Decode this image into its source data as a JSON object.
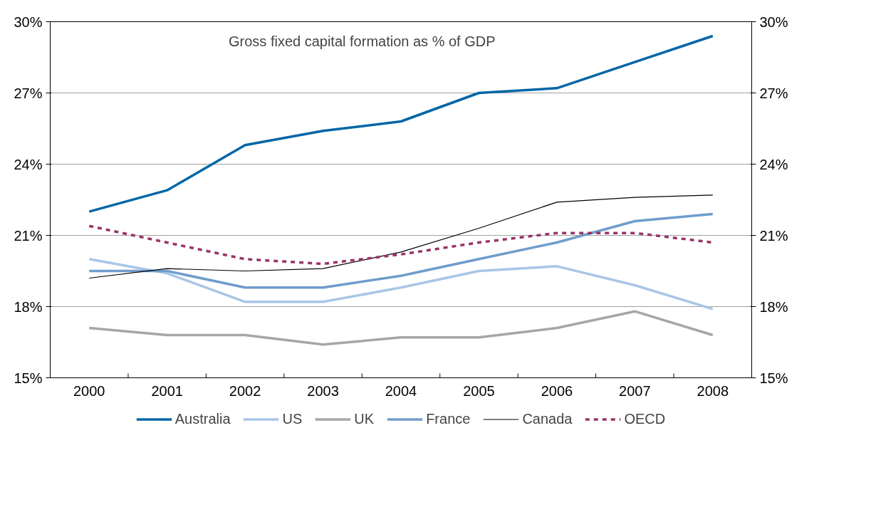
{
  "chart_data": {
    "type": "line",
    "title": "Gross fixed capital formation as % of GDP",
    "categories": [
      "2000",
      "2001",
      "2002",
      "2003",
      "2004",
      "2005",
      "2006",
      "2007",
      "2008"
    ],
    "series": [
      {
        "name": "Australia",
        "color": "#0066a6",
        "values": [
          22.0,
          22.9,
          24.8,
          25.4,
          25.8,
          27.0,
          27.2,
          28.3,
          29.4
        ]
      },
      {
        "name": "US",
        "color": "#a9c6e6",
        "values": [
          20.0,
          19.4,
          18.2,
          18.2,
          18.8,
          19.5,
          19.7,
          18.9,
          17.9
        ]
      },
      {
        "name": "UK",
        "color": "#a6a6a6",
        "values": [
          17.1,
          16.8,
          16.8,
          16.4,
          16.7,
          16.7,
          17.1,
          17.8,
          16.8
        ]
      },
      {
        "name": "France",
        "color": "#6f9ccc",
        "values": [
          19.5,
          19.5,
          18.8,
          18.8,
          19.3,
          20.0,
          20.7,
          21.6,
          21.9
        ]
      },
      {
        "name": "Canada",
        "color": "#000000",
        "values": [
          19.2,
          19.6,
          19.5,
          19.6,
          20.3,
          21.3,
          22.4,
          22.6,
          22.7
        ]
      },
      {
        "name": "OECD",
        "color": "#993366",
        "line_style": "dashed",
        "values": [
          21.4,
          20.7,
          20.0,
          19.8,
          20.2,
          20.7,
          21.1,
          21.1,
          20.7
        ]
      }
    ],
    "ylim": [
      15,
      30
    ],
    "yticks": [
      {
        "value": 15,
        "label": "15%"
      },
      {
        "value": 18,
        "label": "18%"
      },
      {
        "value": 21,
        "label": "21%"
      },
      {
        "value": 24,
        "label": "24%"
      },
      {
        "value": 27,
        "label": "27%"
      },
      {
        "value": 30,
        "label": "30%"
      }
    ],
    "y2lim": [
      15,
      30
    ],
    "y2ticks": [
      {
        "value": 15,
        "label": "15%"
      },
      {
        "value": 18,
        "label": "18%"
      },
      {
        "value": 21,
        "label": "21%"
      },
      {
        "value": 24,
        "label": "24%"
      },
      {
        "value": 27,
        "label": "27%"
      },
      {
        "value": 30,
        "label": "30%"
      }
    ],
    "grid": "y",
    "legend": "bottom",
    "marker": "none",
    "line_style": "solid"
  }
}
